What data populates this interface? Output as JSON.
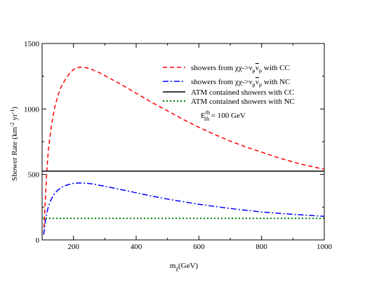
{
  "chart_data": {
    "type": "line",
    "xlabel": "m",
    "xlabel_sub": "χ",
    "xlabel_unit": "(GeV)",
    "ylabel": "Shower Rate (km",
    "ylabel_sup1": "-2",
    "ylabel_mid": " yr",
    "ylabel_sup2": "-1",
    "ylabel_end": ")",
    "xlim": [
      100,
      1000
    ],
    "ylim": [
      0,
      1500
    ],
    "xticks": [
      200,
      400,
      600,
      800,
      1000
    ],
    "yticks": [
      0,
      500,
      1000,
      1500
    ],
    "grid": false,
    "legend_position": "top-right",
    "series": [
      {
        "name": "showers from χχ->ν_μ ν̄_μ with CC",
        "color": "#ff0000",
        "dash": "dashed",
        "x": [
          105,
          110,
          115,
          120,
          130,
          140,
          150,
          160,
          175,
          190,
          205,
          220,
          240,
          260,
          280,
          300,
          350,
          400,
          450,
          500,
          550,
          600,
          650,
          700,
          750,
          800,
          850,
          900,
          950,
          1000
        ],
        "y": [
          40,
          300,
          520,
          690,
          880,
          1010,
          1100,
          1165,
          1230,
          1280,
          1310,
          1320,
          1315,
          1300,
          1280,
          1255,
          1190,
          1120,
          1050,
          985,
          920,
          860,
          805,
          755,
          710,
          670,
          630,
          595,
          565,
          540
        ]
      },
      {
        "name": "showers from χχ->ν_μ ν̄_μ with NC",
        "color": "#0000ff",
        "dash": "dashdot",
        "x": [
          105,
          110,
          115,
          120,
          130,
          140,
          150,
          165,
          180,
          200,
          220,
          240,
          260,
          300,
          350,
          400,
          450,
          500,
          600,
          700,
          800,
          900,
          1000
        ],
        "y": [
          40,
          140,
          205,
          255,
          315,
          355,
          380,
          405,
          420,
          432,
          435,
          433,
          428,
          410,
          385,
          360,
          335,
          312,
          272,
          240,
          213,
          195,
          180
        ]
      },
      {
        "name": "ATM contained showers with CC",
        "color": "#000000",
        "dash": "solid",
        "x": [
          100,
          1000
        ],
        "y": [
          525,
          525
        ]
      },
      {
        "name": "ATM contained showers with NC",
        "color": "#008000",
        "dash": "dotted",
        "x": [
          100,
          1000
        ],
        "y": [
          165,
          165
        ]
      }
    ],
    "annotation": {
      "main": "E",
      "sup": "th",
      "sub": "sh",
      "rest": " = 100 GeV"
    },
    "legend": [
      {
        "pre": "showers from χχ->ν",
        "sub1": "μ",
        "mid": "ν",
        "sub2": "μ",
        "post": " with CC"
      },
      {
        "pre": "showers from χχ->ν",
        "sub1": "μ",
        "mid": "ν",
        "sub2": "μ",
        "post": " with NC"
      },
      {
        "text": "ATM contained showers with CC"
      },
      {
        "text": "ATM contained showers with NC"
      }
    ]
  }
}
